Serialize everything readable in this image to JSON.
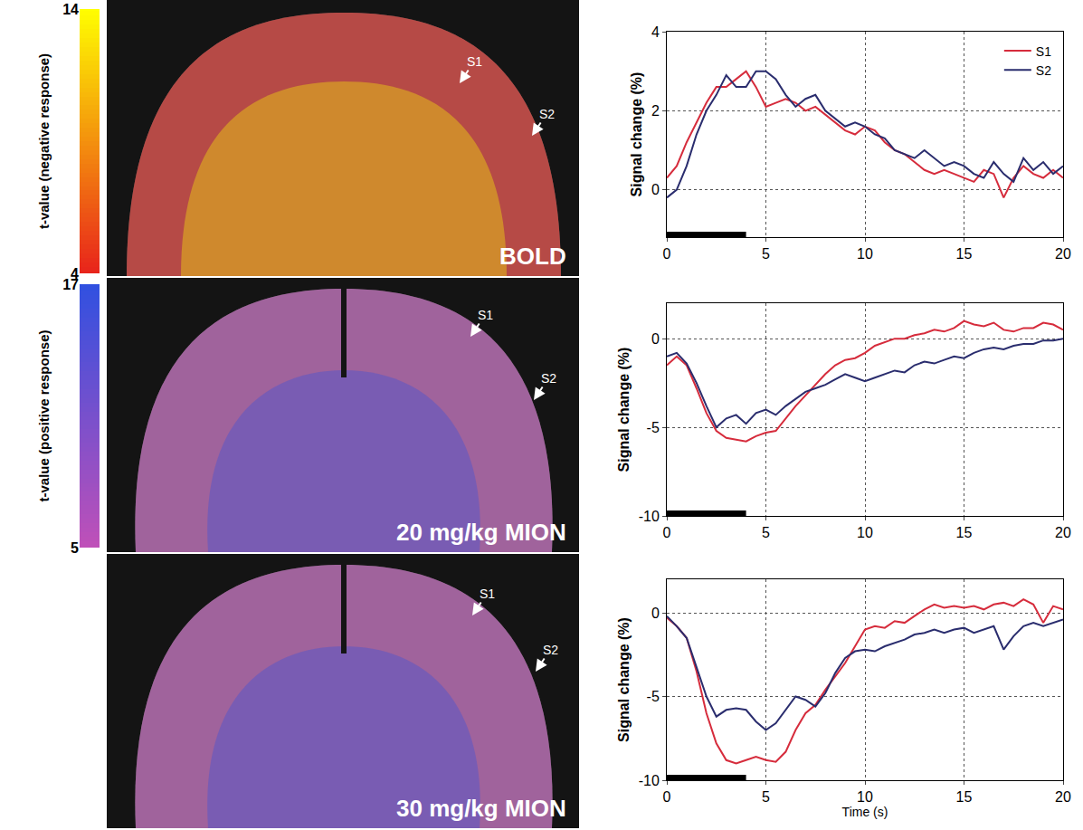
{
  "colorbars": [
    {
      "title": "t-value (negative response)",
      "range": [
        4,
        14
      ],
      "ticks": [
        4,
        14
      ],
      "colors": [
        "#e8231b",
        "#ffff00"
      ]
    },
    {
      "title": "t-value (positive response)",
      "range": [
        5,
        17
      ],
      "ticks": [
        5,
        17
      ],
      "colors": [
        "#c050b8",
        "#3050e0"
      ]
    }
  ],
  "image_panels": [
    {
      "label": "BOLD",
      "markers": [
        "S1",
        "S2"
      ],
      "colorbar": 0
    },
    {
      "label": "20 mg/kg MION",
      "markers": [
        "S1",
        "S2"
      ],
      "colorbar": 1
    },
    {
      "label": "30 mg/kg MION",
      "markers": [
        "S1",
        "S2"
      ],
      "colorbar": 1
    }
  ],
  "chart_data": [
    {
      "type": "line",
      "y_label": "Signal change (%)",
      "x": [
        0,
        0.5,
        1,
        1.5,
        2,
        2.5,
        3,
        3.5,
        4,
        4.5,
        5,
        5.5,
        6,
        6.5,
        7,
        7.5,
        8,
        8.5,
        9,
        9.5,
        10,
        10.5,
        11,
        11.5,
        12,
        12.5,
        13,
        13.5,
        14,
        14.5,
        15,
        15.5,
        16,
        16.5,
        17,
        17.5,
        18,
        18.5,
        19,
        19.5,
        20
      ],
      "series": [
        {
          "name": "S1",
          "color": "#d62c3c",
          "values": [
            0.3,
            0.6,
            1.2,
            1.7,
            2.2,
            2.6,
            2.6,
            2.8,
            3.0,
            2.6,
            2.1,
            2.2,
            2.3,
            2.2,
            2.0,
            2.1,
            1.9,
            1.7,
            1.5,
            1.4,
            1.6,
            1.5,
            1.2,
            1.0,
            0.9,
            0.7,
            0.5,
            0.4,
            0.5,
            0.4,
            0.3,
            0.2,
            0.5,
            0.4,
            -0.2,
            0.3,
            0.6,
            0.4,
            0.3,
            0.5,
            0.3
          ]
        },
        {
          "name": "S2",
          "color": "#2a2d6e",
          "values": [
            -0.2,
            0,
            0.6,
            1.4,
            2.0,
            2.4,
            2.9,
            2.6,
            2.6,
            3.0,
            3.0,
            2.8,
            2.4,
            2.1,
            2.3,
            2.4,
            2.0,
            1.8,
            1.6,
            1.7,
            1.6,
            1.4,
            1.3,
            1.0,
            0.9,
            0.8,
            1.0,
            0.8,
            0.6,
            0.7,
            0.6,
            0.4,
            0.3,
            0.7,
            0.4,
            0.2,
            0.8,
            0.5,
            0.7,
            0.4,
            0.6
          ]
        }
      ],
      "stimulus": [
        0,
        4
      ],
      "xlim": [
        0,
        20
      ],
      "xticks": [
        0,
        5,
        10,
        15,
        20
      ],
      "ylim": [
        -1.2,
        4
      ],
      "yticks": [
        0,
        2,
        4
      ],
      "grid": true,
      "legend": "upper right"
    },
    {
      "type": "line",
      "y_label": "Signal change (%)",
      "x": [
        0,
        0.5,
        1,
        1.5,
        2,
        2.5,
        3,
        3.5,
        4,
        4.5,
        5,
        5.5,
        6,
        6.5,
        7,
        7.5,
        8,
        8.5,
        9,
        9.5,
        10,
        10.5,
        11,
        11.5,
        12,
        12.5,
        13,
        13.5,
        14,
        14.5,
        15,
        15.5,
        16,
        16.5,
        17,
        17.5,
        18,
        18.5,
        19,
        19.5,
        20
      ],
      "series": [
        {
          "name": "S1",
          "color": "#d62c3c",
          "values": [
            -1.5,
            -1.0,
            -1.5,
            -2.8,
            -4.2,
            -5.2,
            -5.6,
            -5.7,
            -5.8,
            -5.5,
            -5.3,
            -5.2,
            -4.5,
            -3.8,
            -3.2,
            -2.6,
            -2.0,
            -1.5,
            -1.2,
            -1.1,
            -0.8,
            -0.4,
            -0.2,
            0,
            0,
            0.2,
            0.3,
            0.5,
            0.4,
            0.6,
            1.0,
            0.8,
            0.7,
            0.9,
            0.5,
            0.4,
            0.6,
            0.6,
            0.9,
            0.8,
            0.5
          ]
        },
        {
          "name": "S2",
          "color": "#2a2d6e",
          "values": [
            -1.0,
            -0.8,
            -1.4,
            -2.5,
            -3.8,
            -5.0,
            -4.5,
            -4.3,
            -4.8,
            -4.2,
            -4.0,
            -4.3,
            -3.8,
            -3.4,
            -3.0,
            -2.8,
            -2.6,
            -2.3,
            -2.0,
            -2.2,
            -2.4,
            -2.2,
            -2.0,
            -1.8,
            -1.9,
            -1.5,
            -1.3,
            -1.4,
            -1.2,
            -1.0,
            -1.1,
            -0.8,
            -0.6,
            -0.5,
            -0.6,
            -0.4,
            -0.3,
            -0.3,
            -0.1,
            -0.1,
            0
          ]
        }
      ],
      "stimulus": [
        0,
        4
      ],
      "xlim": [
        0,
        20
      ],
      "xticks": [
        0,
        5,
        10,
        15,
        20
      ],
      "ylim": [
        -10,
        2
      ],
      "yticks": [
        -10,
        -5,
        0
      ],
      "grid": true
    },
    {
      "type": "line",
      "x_label": "Time (s)",
      "y_label": "Signal change (%)",
      "x": [
        0,
        0.5,
        1,
        1.5,
        2,
        2.5,
        3,
        3.5,
        4,
        4.5,
        5,
        5.5,
        6,
        6.5,
        7,
        7.5,
        8,
        8.5,
        9,
        9.5,
        10,
        10.5,
        11,
        11.5,
        12,
        12.5,
        13,
        13.5,
        14,
        14.5,
        15,
        15.5,
        16,
        16.5,
        17,
        17.5,
        18,
        18.5,
        19,
        19.5,
        20
      ],
      "series": [
        {
          "name": "S1",
          "color": "#d62c3c",
          "values": [
            -0.3,
            -0.8,
            -1.5,
            -3.5,
            -6.0,
            -7.8,
            -8.8,
            -9.0,
            -8.8,
            -8.6,
            -8.8,
            -8.9,
            -8.3,
            -7.0,
            -6.0,
            -5.5,
            -4.6,
            -3.8,
            -3.0,
            -2.0,
            -1.0,
            -0.8,
            -0.9,
            -0.5,
            -0.6,
            -0.2,
            0.2,
            0.5,
            0.3,
            0.4,
            0.3,
            0.4,
            0.2,
            0.5,
            0.6,
            0.4,
            0.8,
            0.5,
            -0.6,
            0.4,
            0.2
          ]
        },
        {
          "name": "S2",
          "color": "#2a2d6e",
          "values": [
            -0.2,
            -0.8,
            -1.5,
            -3.2,
            -5.0,
            -6.2,
            -5.8,
            -5.7,
            -5.8,
            -6.5,
            -7.0,
            -6.6,
            -5.8,
            -5.0,
            -5.2,
            -5.6,
            -4.8,
            -3.6,
            -2.7,
            -2.3,
            -2.2,
            -2.3,
            -2.0,
            -1.8,
            -1.6,
            -1.3,
            -1.2,
            -1.0,
            -1.2,
            -1.0,
            -0.9,
            -1.2,
            -1.0,
            -0.8,
            -2.2,
            -1.4,
            -0.8,
            -0.6,
            -0.8,
            -0.6,
            -0.4
          ]
        }
      ],
      "stimulus": [
        0,
        4
      ],
      "xlim": [
        0,
        20
      ],
      "xticks": [
        0,
        5,
        10,
        15,
        20
      ],
      "ylim": [
        -10,
        2
      ],
      "yticks": [
        -10,
        -5,
        0
      ],
      "grid": true
    }
  ]
}
